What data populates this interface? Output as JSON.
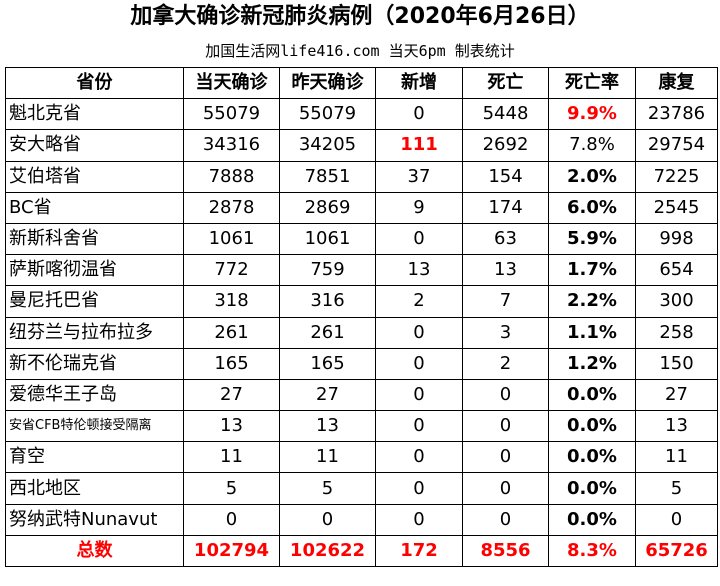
{
  "title": "加拿大确诊新冠肺炎病例（2020年6月26日）",
  "subtitle": "加国生活网life416.com 当天6pm 制表统计",
  "headers": [
    "省份",
    "当天确诊",
    "昨天确诊",
    "新增",
    "死亡",
    "死亡率",
    "康复"
  ],
  "rows": [
    {
      "name": "魁北克省",
      "today": "55079",
      "yesterday": "55079",
      "new": "0",
      "deaths": "5448",
      "rate": "9.9%",
      "recovered": "23786"
    },
    {
      "name": "安大略省",
      "today": "34316",
      "yesterday": "34205",
      "new": "111",
      "deaths": "2692",
      "rate": "7.8%",
      "recovered": "29754"
    },
    {
      "name": "艾伯塔省",
      "today": "7888",
      "yesterday": "7851",
      "new": "37",
      "deaths": "154",
      "rate": "2.0%",
      "recovered": "7225"
    },
    {
      "name": "BC省",
      "today": "2878",
      "yesterday": "2869",
      "new": "9",
      "deaths": "174",
      "rate": "6.0%",
      "recovered": "2545"
    },
    {
      "name": "新斯科舍省",
      "today": "1061",
      "yesterday": "1061",
      "new": "0",
      "deaths": "63",
      "rate": "5.9%",
      "recovered": "998"
    },
    {
      "name": "萨斯喀彻温省",
      "today": "772",
      "yesterday": "759",
      "new": "13",
      "deaths": "13",
      "rate": "1.7%",
      "recovered": "654"
    },
    {
      "name": "曼尼托巴省",
      "today": "318",
      "yesterday": "316",
      "new": "2",
      "deaths": "7",
      "rate": "2.2%",
      "recovered": "300"
    },
    {
      "name": "纽芬兰与拉布拉多",
      "today": "261",
      "yesterday": "261",
      "new": "0",
      "deaths": "3",
      "rate": "1.1%",
      "recovered": "258"
    },
    {
      "name": "新不伦瑞克省",
      "today": "165",
      "yesterday": "165",
      "new": "0",
      "deaths": "2",
      "rate": "1.2%",
      "recovered": "150"
    },
    {
      "name": "爱德华王子岛",
      "today": "27",
      "yesterday": "27",
      "new": "0",
      "deaths": "0",
      "rate": "0.0%",
      "recovered": "27"
    },
    {
      "name": "安省CFB特伦顿接受隔离",
      "today": "13",
      "yesterday": "13",
      "new": "0",
      "deaths": "0",
      "rate": "0.0%",
      "recovered": "13"
    },
    {
      "name": "育空",
      "today": "11",
      "yesterday": "11",
      "new": "0",
      "deaths": "0",
      "rate": "0.0%",
      "recovered": "11"
    },
    {
      "name": "西北地区",
      "today": "5",
      "yesterday": "5",
      "new": "0",
      "deaths": "0",
      "rate": "0.0%",
      "recovered": "5"
    },
    {
      "name": "努纳武特Nunavut",
      "today": "0",
      "yesterday": "0",
      "new": "0",
      "deaths": "0",
      "rate": "0.0%",
      "recovered": "0"
    }
  ],
  "total": {
    "name": "总数",
    "today": "102794",
    "yesterday": "102622",
    "new": "172",
    "deaths": "8556",
    "rate": "8.3%",
    "recovered": "65726"
  },
  "colors": {
    "highlight": "#ff0000",
    "text": "#000000",
    "background": "#ffffff"
  }
}
